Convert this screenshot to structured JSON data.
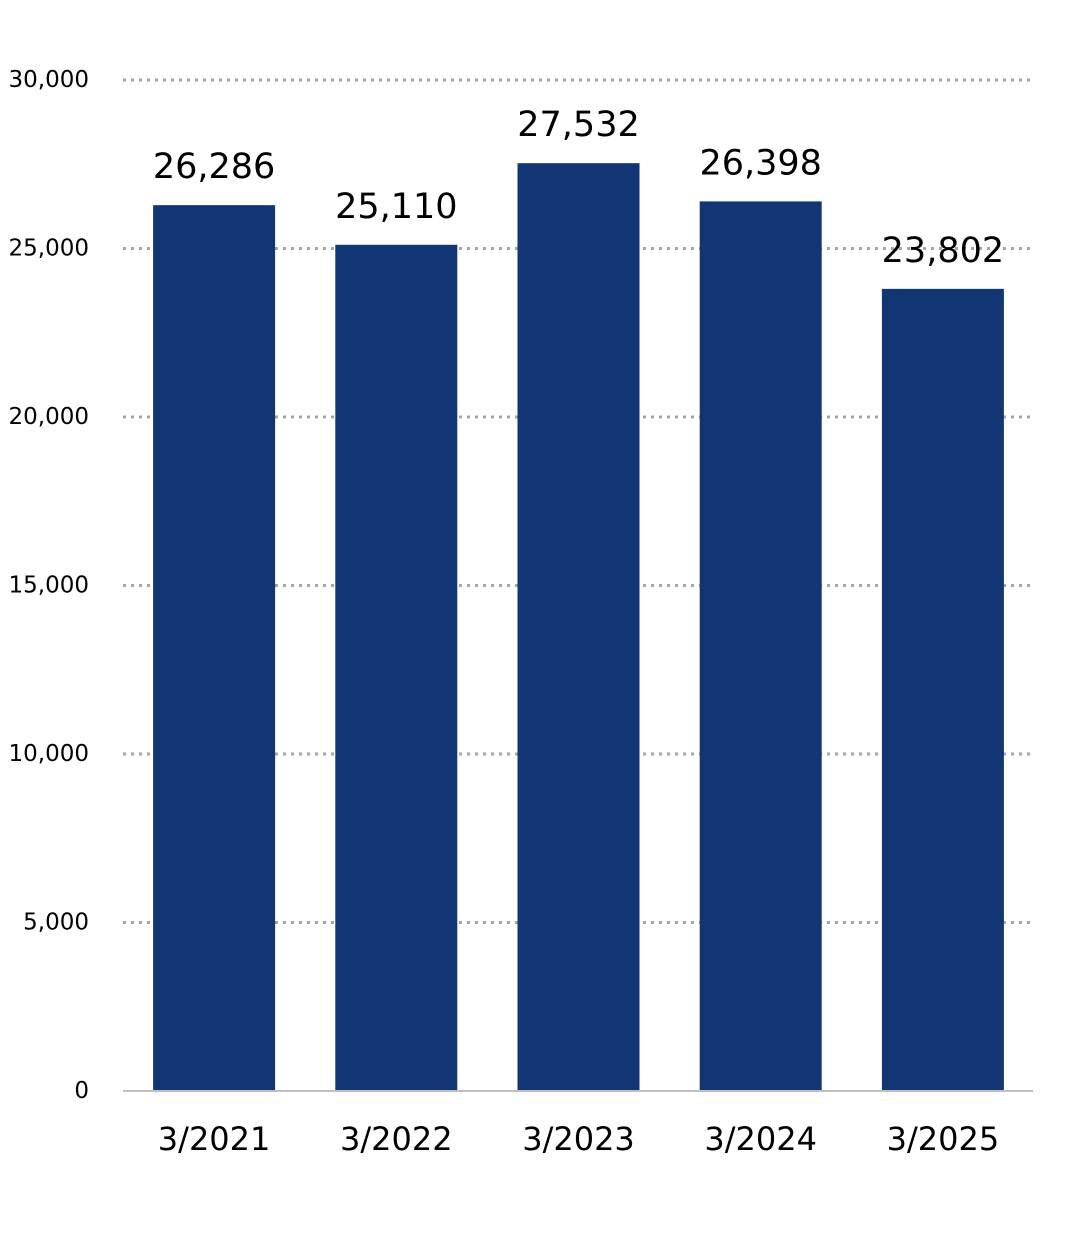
{
  "chart_data": {
    "type": "bar",
    "categories": [
      "3/2021",
      "3/2022",
      "3/2023",
      "3/2024",
      "3/2025"
    ],
    "values": [
      26286,
      25110,
      27532,
      26398,
      23802
    ],
    "data_labels": [
      "26,286",
      "25,110",
      "27,532",
      "26,398",
      "23,802"
    ],
    "ylim": [
      0,
      30000
    ],
    "y_ticks": [
      0,
      5000,
      10000,
      15000,
      20000,
      25000,
      30000
    ],
    "y_tick_labels": [
      "0",
      "5,000",
      "10,000",
      "15,000",
      "20,000",
      "25,000",
      "30,000"
    ],
    "grid": true,
    "grid_style": "dotted",
    "legend": false,
    "bar_color": "#113673"
  }
}
